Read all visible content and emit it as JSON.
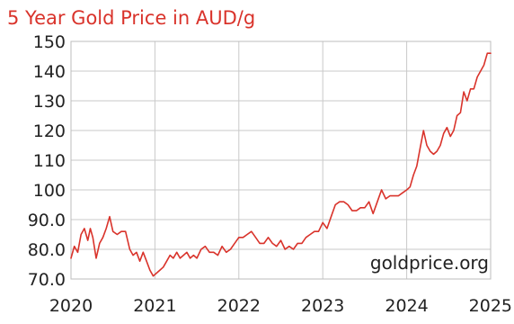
{
  "chart_data": {
    "type": "line",
    "title": "5 Year Gold Price in AUD/g",
    "xlabel": "",
    "ylabel": "",
    "watermark": "goldprice.org",
    "x_ticks": [
      "2020",
      "2021",
      "2022",
      "2023",
      "2024",
      "2025"
    ],
    "y_ticks": [
      "70.0",
      "80.0",
      "90.0",
      "100",
      "110",
      "120",
      "130",
      "140",
      "150"
    ],
    "xlim": [
      2020,
      2025
    ],
    "ylim": [
      70,
      150
    ],
    "grid": true,
    "colors": {
      "series": "#d9332b",
      "title": "#d9332b"
    },
    "series": [
      {
        "x": [
          2020.0,
          2020.04,
          2020.08,
          2020.12,
          2020.16,
          2020.2,
          2020.23,
          2020.26,
          2020.3,
          2020.34,
          2020.38,
          2020.42,
          2020.46,
          2020.5,
          2020.55,
          2020.6,
          2020.65,
          2020.7,
          2020.74,
          2020.78,
          2020.82,
          2020.86,
          2020.9,
          2020.94,
          2020.98,
          2021.02,
          2021.06,
          2021.1,
          2021.14,
          2021.18,
          2021.22,
          2021.26,
          2021.3,
          2021.34,
          2021.38,
          2021.42,
          2021.46,
          2021.5,
          2021.55,
          2021.6,
          2021.65,
          2021.7,
          2021.75,
          2021.8,
          2021.85,
          2021.9,
          2021.95,
          2022.0,
          2022.05,
          2022.1,
          2022.15,
          2022.2,
          2022.25,
          2022.3,
          2022.35,
          2022.4,
          2022.45,
          2022.5,
          2022.55,
          2022.6,
          2022.65,
          2022.7,
          2022.75,
          2022.8,
          2022.85,
          2022.9,
          2022.95,
          2023.0,
          2023.05,
          2023.1,
          2023.15,
          2023.2,
          2023.25,
          2023.3,
          2023.35,
          2023.4,
          2023.45,
          2023.5,
          2023.55,
          2023.6,
          2023.65,
          2023.7,
          2023.75,
          2023.8,
          2023.85,
          2023.9,
          2023.95,
          2024.0,
          2024.04,
          2024.08,
          2024.12,
          2024.16,
          2024.2,
          2024.24,
          2024.28,
          2024.32,
          2024.36,
          2024.4,
          2024.44,
          2024.48,
          2024.52,
          2024.56,
          2024.6,
          2024.64,
          2024.68,
          2024.72,
          2024.76,
          2024.8,
          2024.84,
          2024.88,
          2024.92,
          2024.96,
          2025.0
        ],
        "y": [
          77,
          81,
          79,
          85,
          87,
          83,
          87,
          84,
          77,
          82,
          84,
          87,
          91,
          86,
          85,
          86,
          86,
          80,
          78,
          79,
          76,
          79,
          76,
          73,
          71,
          72,
          73,
          74,
          76,
          78,
          77,
          79,
          77,
          78,
          79,
          77,
          78,
          77,
          80,
          81,
          79,
          79,
          78,
          81,
          79,
          80,
          82,
          84,
          84,
          85,
          86,
          84,
          82,
          82,
          84,
          82,
          81,
          83,
          80,
          81,
          80,
          82,
          82,
          84,
          85,
          86,
          86,
          89,
          87,
          91,
          95,
          96,
          96,
          95,
          93,
          93,
          94,
          94,
          96,
          92,
          96,
          100,
          97,
          98,
          98,
          98,
          99,
          100,
          101,
          105,
          108,
          114,
          120,
          115,
          113,
          112,
          113,
          115,
          119,
          121,
          118,
          120,
          125,
          126,
          133,
          130,
          134,
          134,
          138,
          140,
          142,
          146,
          146
        ],
        "color": "#d9332b"
      }
    ]
  }
}
